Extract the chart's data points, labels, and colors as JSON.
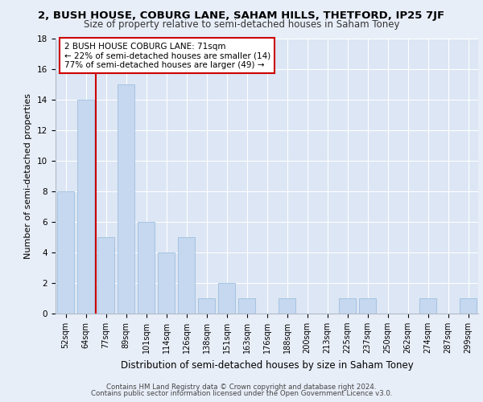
{
  "title1": "2, BUSH HOUSE, COBURG LANE, SAHAM HILLS, THETFORD, IP25 7JF",
  "title2": "Size of property relative to semi-detached houses in Saham Toney",
  "xlabel": "Distribution of semi-detached houses by size in Saham Toney",
  "ylabel": "Number of semi-detached properties",
  "categories": [
    "52sqm",
    "64sqm",
    "77sqm",
    "89sqm",
    "101sqm",
    "114sqm",
    "126sqm",
    "138sqm",
    "151sqm",
    "163sqm",
    "176sqm",
    "188sqm",
    "200sqm",
    "213sqm",
    "225sqm",
    "237sqm",
    "250sqm",
    "262sqm",
    "274sqm",
    "287sqm",
    "299sqm"
  ],
  "values": [
    8,
    14,
    5,
    15,
    6,
    4,
    5,
    1,
    2,
    1,
    0,
    1,
    0,
    0,
    1,
    1,
    0,
    0,
    1,
    0,
    1
  ],
  "bar_color": "#c5d8f0",
  "bar_edge_color": "#a0bedd",
  "vline_x": 1.5,
  "vline_color": "#cc0000",
  "annotation_text": "2 BUSH HOUSE COBURG LANE: 71sqm\n← 22% of semi-detached houses are smaller (14)\n77% of semi-detached houses are larger (49) →",
  "annotation_box_color": "#ffffff",
  "annotation_box_edge": "#cc0000",
  "ylim": [
    0,
    18
  ],
  "yticks": [
    0,
    2,
    4,
    6,
    8,
    10,
    12,
    14,
    16,
    18
  ],
  "footer1": "Contains HM Land Registry data © Crown copyright and database right 2024.",
  "footer2": "Contains public sector information licensed under the Open Government Licence v3.0.",
  "bg_color": "#e8eef8",
  "plot_bg": "#dce6f4",
  "grid_color": "#ffffff"
}
